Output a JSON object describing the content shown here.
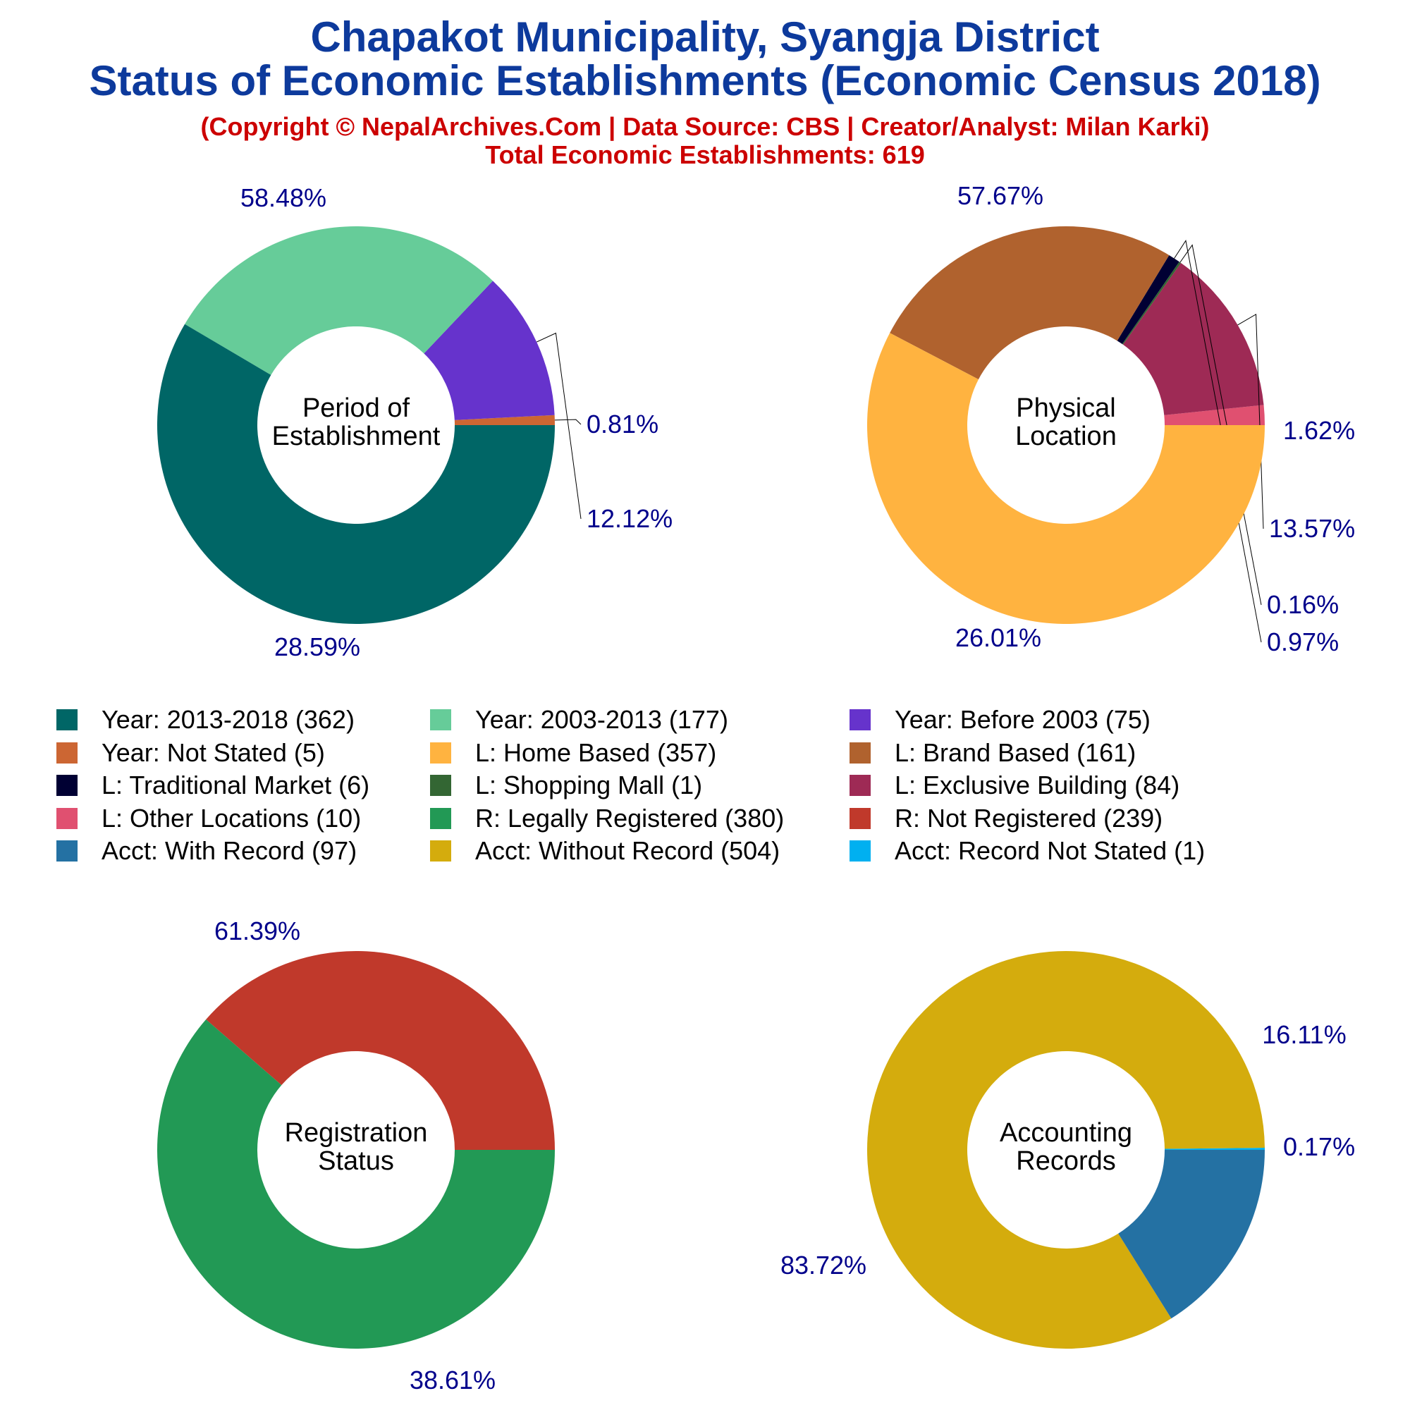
{
  "title_line1": "Chapakot Municipality, Syangja District",
  "title_line2": "Status of Economic Establishments (Economic Census 2018)",
  "copyright": "(Copyright © NepalArchives.Com | Data Source: CBS | Creator/Analyst: Milan Karki)",
  "total": "Total Economic Establishments: 619",
  "colors": {
    "title": "#0d3a9c",
    "subtitle": "#cc0000",
    "pct_label": "#00008b"
  },
  "legend": [
    {
      "label": "Year: 2013-2018 (362)",
      "color": "#006666"
    },
    {
      "label": "Year: 2003-2013 (177)",
      "color": "#66cc99"
    },
    {
      "label": "Year: Before 2003 (75)",
      "color": "#6633cc"
    },
    {
      "label": "Year: Not Stated (5)",
      "color": "#cc6633"
    },
    {
      "label": "L: Home Based (357)",
      "color": "#ffb340"
    },
    {
      "label": "L: Brand Based (161)",
      "color": "#b0622e"
    },
    {
      "label": "L: Traditional Market (6)",
      "color": "#000033"
    },
    {
      "label": "L: Shopping Mall (1)",
      "color": "#336633"
    },
    {
      "label": "L: Exclusive Building (84)",
      "color": "#9e2a55"
    },
    {
      "label": "L: Other Locations (10)",
      "color": "#e05070"
    },
    {
      "label": "R: Legally Registered (380)",
      "color": "#229955"
    },
    {
      "label": "R: Not Registered (239)",
      "color": "#c0392b"
    },
    {
      "label": "Acct: With Record (97)",
      "color": "#2471a3"
    },
    {
      "label": "Acct: Without Record (504)",
      "color": "#d4ac0d"
    },
    {
      "label": "Acct: Record Not Stated (1)",
      "color": "#00b0f0"
    }
  ],
  "chart_data": [
    {
      "type": "pie",
      "center_label": [
        "Period of",
        "Establishment"
      ],
      "slices": [
        {
          "name": "Year: Not Stated",
          "value": 5,
          "pct_label": "0.81%",
          "color": "#cc6633"
        },
        {
          "name": "Year: Before 2003",
          "value": 75,
          "pct_label": "12.12%",
          "color": "#6633cc"
        },
        {
          "name": "Year: 2003-2013",
          "value": 177,
          "pct_label": "28.59%",
          "color": "#66cc99"
        },
        {
          "name": "Year: 2013-2018",
          "value": 362,
          "pct_label": "58.48%",
          "color": "#006666"
        }
      ]
    },
    {
      "type": "pie",
      "center_label": [
        "Physical",
        "Location"
      ],
      "slices": [
        {
          "name": "L: Other Locations",
          "value": 10,
          "pct_label": "1.62%",
          "color": "#e05070"
        },
        {
          "name": "L: Exclusive Building",
          "value": 84,
          "pct_label": "13.57%",
          "color": "#9e2a55"
        },
        {
          "name": "L: Shopping Mall",
          "value": 1,
          "pct_label": "0.16%",
          "color": "#336633"
        },
        {
          "name": "L: Traditional Market",
          "value": 6,
          "pct_label": "0.97%",
          "color": "#000033"
        },
        {
          "name": "L: Brand Based",
          "value": 161,
          "pct_label": "26.01%",
          "color": "#b0622e"
        },
        {
          "name": "L: Home Based",
          "value": 357,
          "pct_label": "57.67%",
          "color": "#ffb340"
        }
      ]
    },
    {
      "type": "pie",
      "center_label": [
        "Registration",
        "Status"
      ],
      "slices": [
        {
          "name": "R: Not Registered",
          "value": 239,
          "pct_label": "38.61%",
          "color": "#c0392b"
        },
        {
          "name": "R: Legally Registered",
          "value": 380,
          "pct_label": "61.39%",
          "color": "#229955"
        }
      ]
    },
    {
      "type": "pie",
      "center_label": [
        "Accounting",
        "Records"
      ],
      "slices": [
        {
          "name": "Acct: Record Not Stated",
          "value": 1,
          "pct_label": "0.17%",
          "color": "#00b0f0"
        },
        {
          "name": "Acct: Without Record",
          "value": 504,
          "pct_label": "83.72%",
          "color": "#d4ac0d"
        },
        {
          "name": "Acct: With Record",
          "value": 97,
          "pct_label": "16.11%",
          "color": "#2471a3"
        }
      ]
    }
  ]
}
